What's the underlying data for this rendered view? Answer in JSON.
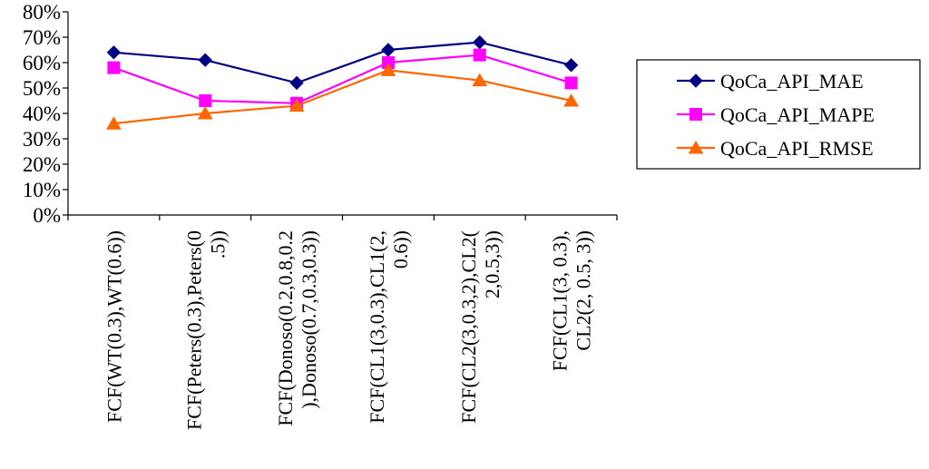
{
  "chart_data": {
    "type": "line",
    "title": "",
    "xlabel": "",
    "ylabel": "",
    "ylim": [
      0,
      80
    ],
    "y_ticks": [
      "0%",
      "10%",
      "20%",
      "30%",
      "40%",
      "50%",
      "60%",
      "70%",
      "80%"
    ],
    "grid": false,
    "legend_position": "right",
    "categories": [
      [
        "FCF(WT(0.3),WT(0.6))"
      ],
      [
        "FCF(Peters(0.3),Peters(0",
        ".5))"
      ],
      [
        "FCF(Donoso(0.2,0.8,0.2",
        "),Donoso(0.7,0.3,0.3))"
      ],
      [
        "FCF(CL1(3,0.3),CL1(2,",
        "0.6))"
      ],
      [
        "FCF(CL2(3,0.3,2),CL2(",
        "2,0.5,3))"
      ],
      [
        "FCF(CL1(3, 0.3),",
        "CL2(2, 0.5, 3))"
      ]
    ],
    "series": [
      {
        "name": "QoCa_API_MAE",
        "color": "#000080",
        "marker": "diamond",
        "values": [
          64,
          61,
          52,
          65,
          68,
          59
        ]
      },
      {
        "name": "QoCa_API_MAPE",
        "color": "#FF00FF",
        "marker": "square",
        "values": [
          58,
          45,
          44,
          60,
          63,
          52
        ]
      },
      {
        "name": "QoCa_API_RMSE",
        "color": "#FF6600",
        "marker": "triangle",
        "values": [
          36,
          40,
          43,
          57,
          53,
          45
        ]
      }
    ]
  }
}
